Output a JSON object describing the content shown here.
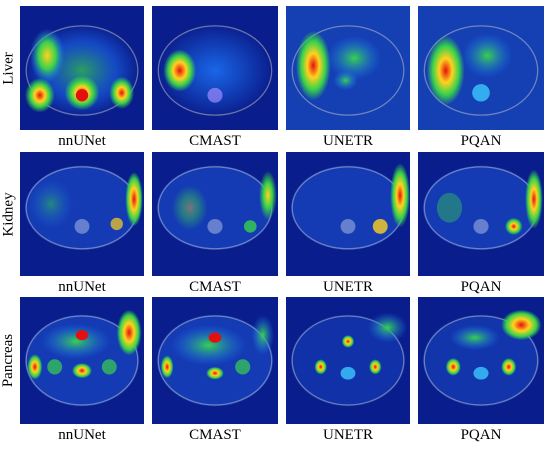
{
  "rows": [
    {
      "id": "liver",
      "label": "Liver",
      "panels": [
        {
          "caption": "nnUNet"
        },
        {
          "caption": "CMAST"
        },
        {
          "caption": "UNETR"
        },
        {
          "caption": "PQAN"
        }
      ]
    },
    {
      "id": "kidney",
      "label": "Kidney",
      "panels": [
        {
          "caption": "nnUNet"
        },
        {
          "caption": "CMAST"
        },
        {
          "caption": "UNETR"
        },
        {
          "caption": "PQAN"
        }
      ]
    },
    {
      "id": "pancreas",
      "label": "Pancreas",
      "panels": [
        {
          "caption": "nnUNet"
        },
        {
          "caption": "CMAST"
        },
        {
          "caption": "UNETR"
        },
        {
          "caption": "PQAN"
        }
      ]
    }
  ],
  "colors": {
    "heatmap_background": "#0a1d8c",
    "heatmap_cool": "#1e78ff",
    "heatmap_mid": "#37d24b",
    "heatmap_warm": "#ffd21e",
    "heatmap_hot": "#e60f0f"
  }
}
